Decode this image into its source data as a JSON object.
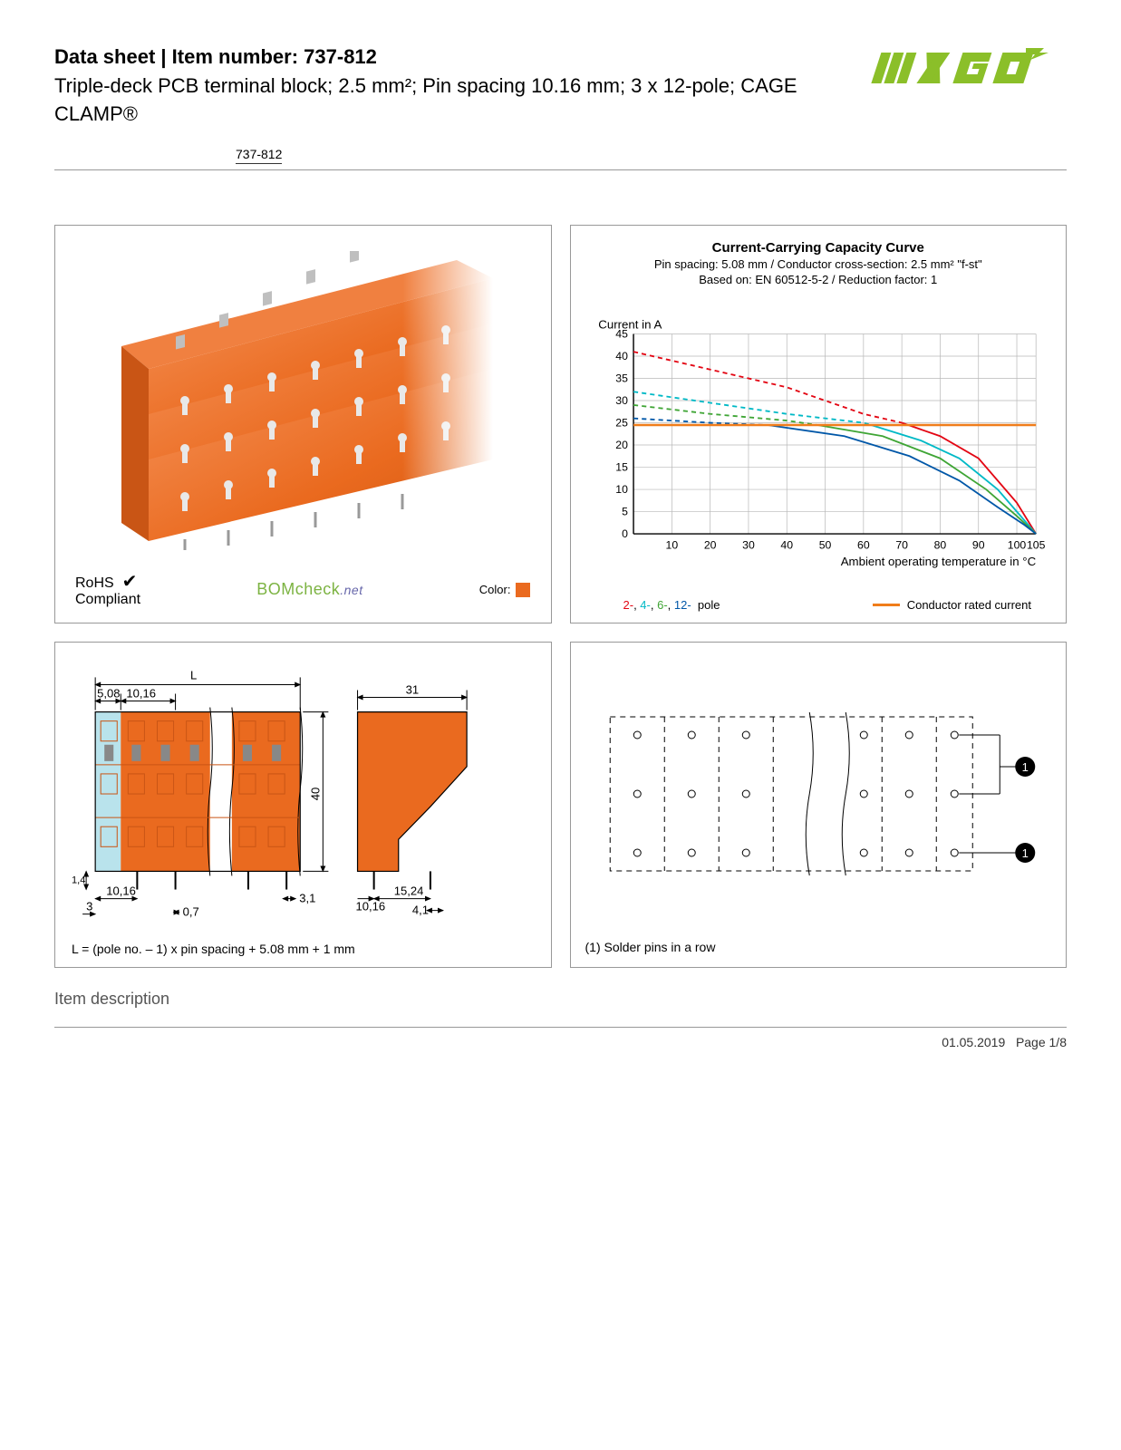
{
  "header": {
    "title_prefix": "Data sheet",
    "title_sep": "  |  ",
    "title_item_label": "Item number:",
    "item_number": "737-812",
    "description": "Triple-deck PCB terminal block; 2.5 mm²; Pin spacing 10.16 mm; 3 x 12-pole; CAGE CLAMP®",
    "badge": "737-812"
  },
  "logo": {
    "text": "WAGO",
    "color": "#8bbf29"
  },
  "product": {
    "block_color": "#ea6a1f",
    "rohs_label": "RoHS",
    "rohs_compliant": "Compliant",
    "bomcheck": "BOMcheck",
    "bomcheck_suffix": ".net",
    "color_label": "Color:",
    "color_swatch": "#ea6a1f"
  },
  "chart": {
    "title": "Current-Carrying Capacity Curve",
    "sub1": "Pin spacing: 5.08 mm / Conductor cross-section: 2.5 mm² \"f-st\"",
    "sub2": "Based on: EN 60512-5-2 / Reduction factor: 1",
    "y_label": "Current in A",
    "x_label": "Ambient operating temperature in °C",
    "y_ticks": [
      0,
      5,
      10,
      15,
      20,
      25,
      30,
      35,
      40,
      45
    ],
    "x_ticks": [
      10,
      20,
      30,
      40,
      50,
      60,
      70,
      80,
      90,
      100,
      105
    ],
    "xlim": [
      0,
      105
    ],
    "ylim": [
      0,
      45
    ],
    "grid_color": "#b8b8b8",
    "axis_color": "#000",
    "series": [
      {
        "name": "2-pole",
        "color": "#e30613",
        "dashed": true,
        "points": [
          [
            0,
            41
          ],
          [
            20,
            37
          ],
          [
            40,
            33
          ],
          [
            60,
            27
          ],
          [
            70,
            25
          ]
        ]
      },
      {
        "name": "4-pole",
        "color": "#00b9c6",
        "dashed": true,
        "points": [
          [
            0,
            32
          ],
          [
            20,
            29.5
          ],
          [
            40,
            27
          ],
          [
            60,
            25
          ],
          [
            62,
            24.5
          ]
        ]
      },
      {
        "name": "6-pole",
        "color": "#3fa535",
        "dashed": true,
        "points": [
          [
            0,
            29
          ],
          [
            20,
            27
          ],
          [
            40,
            25.5
          ],
          [
            48,
            24.5
          ]
        ]
      },
      {
        "name": "12-pole",
        "color": "#0057a8",
        "dashed": true,
        "points": [
          [
            0,
            26
          ],
          [
            20,
            25
          ],
          [
            35,
            24.5
          ]
        ]
      },
      {
        "name": "2-pole-solid",
        "color": "#e30613",
        "dashed": false,
        "points": [
          [
            70,
            25
          ],
          [
            80,
            22
          ],
          [
            90,
            17
          ],
          [
            100,
            7
          ],
          [
            105,
            0
          ]
        ]
      },
      {
        "name": "4-pole-solid",
        "color": "#00b9c6",
        "dashed": false,
        "points": [
          [
            62,
            24.5
          ],
          [
            75,
            21
          ],
          [
            85,
            17
          ],
          [
            95,
            10
          ],
          [
            102,
            3
          ],
          [
            105,
            0
          ]
        ]
      },
      {
        "name": "6-pole-solid",
        "color": "#3fa535",
        "dashed": false,
        "points": [
          [
            48,
            24.5
          ],
          [
            65,
            22
          ],
          [
            80,
            17
          ],
          [
            92,
            10
          ],
          [
            100,
            4
          ],
          [
            105,
            0
          ]
        ]
      },
      {
        "name": "12-pole-solid",
        "color": "#0057a8",
        "dashed": false,
        "points": [
          [
            35,
            24.5
          ],
          [
            55,
            22
          ],
          [
            72,
            17.5
          ],
          [
            85,
            12
          ],
          [
            95,
            6
          ],
          [
            102,
            2
          ],
          [
            105,
            0
          ]
        ]
      },
      {
        "name": "rated",
        "color": "#f07d1a",
        "dashed": false,
        "points": [
          [
            0,
            24.5
          ],
          [
            105,
            24.5
          ]
        ],
        "width": 2.5
      }
    ],
    "legend_poles_text": "2-, 4-, 6-, 12-  pole",
    "legend_rated_text": "Conductor rated current",
    "legend_rated_color": "#f07d1a"
  },
  "tech": {
    "block_color": "#ea6a1f",
    "light_color": "#b9e3ec",
    "dim_L": "L",
    "dim_508": "5,08",
    "dim_1016a": "10,16",
    "dim_40": "40",
    "dim_31": "31",
    "dim_14": "1,4",
    "dim_1016b": "10,16",
    "dim_3": "3",
    "dim_07": "0,7",
    "dim_31b": "3,1",
    "dim_1016c": "10,16",
    "dim_1524": "15,24",
    "dim_41": "4,1",
    "formula": "L = (pole no. – 1) x pin spacing + 5.08 mm + 1 mm"
  },
  "footprint": {
    "note": "(1) Solder pins in a row",
    "callout": "1"
  },
  "section_heading": "Item description",
  "footer": {
    "date": "01.05.2019",
    "page": "Page 1/8"
  }
}
